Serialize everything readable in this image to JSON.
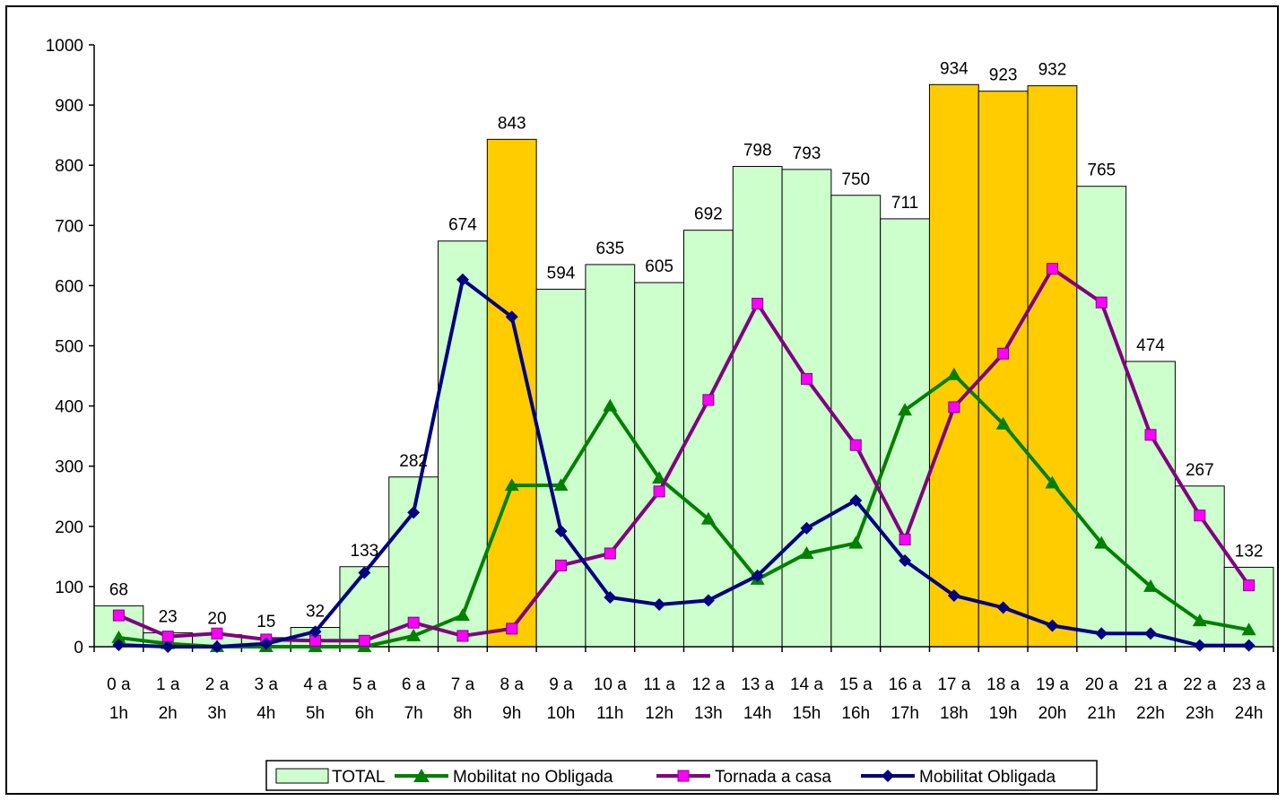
{
  "chart_data": {
    "type": "bar",
    "categories": [
      [
        "0 a",
        "1h"
      ],
      [
        "1 a",
        "2h"
      ],
      [
        "2 a",
        "3h"
      ],
      [
        "3 a",
        "4h"
      ],
      [
        "4 a",
        "5h"
      ],
      [
        "5 a",
        "6h"
      ],
      [
        "6 a",
        "7h"
      ],
      [
        "7 a",
        "8h"
      ],
      [
        "8 a",
        "9h"
      ],
      [
        "9 a",
        "10h"
      ],
      [
        "10 a",
        "11h"
      ],
      [
        "11 a",
        "12h"
      ],
      [
        "12 a",
        "13h"
      ],
      [
        "13 a",
        "14h"
      ],
      [
        "14 a",
        "15h"
      ],
      [
        "15 a",
        "16h"
      ],
      [
        "16 a",
        "17h"
      ],
      [
        "17 a",
        "18h"
      ],
      [
        "18 a",
        "19h"
      ],
      [
        "19 a",
        "20h"
      ],
      [
        "20 a",
        "21h"
      ],
      [
        "21 a",
        "22h"
      ],
      [
        "22 a",
        "23h"
      ],
      [
        "23 a",
        "24h"
      ]
    ],
    "ylim": [
      0,
      1000
    ],
    "yticks": [
      0,
      100,
      200,
      300,
      400,
      500,
      600,
      700,
      800,
      900,
      1000
    ],
    "grid": false,
    "legend_position": "bottom",
    "bar_series": {
      "name": "TOTAL",
      "values": [
        68,
        23,
        20,
        15,
        32,
        133,
        282,
        674,
        843,
        594,
        635,
        605,
        692,
        798,
        793,
        750,
        711,
        934,
        923,
        932,
        765,
        474,
        267,
        132
      ],
      "highlighted_indices": [
        8,
        17,
        18,
        19
      ],
      "color": "#ccffcc",
      "highlight_color": "#ffcc00"
    },
    "line_series": [
      {
        "name": "Mobilitat no Obligada",
        "marker": "triangle",
        "color": "#008000",
        "values": [
          15,
          5,
          0,
          0,
          0,
          0,
          18,
          52,
          268,
          268,
          400,
          280,
          212,
          112,
          155,
          172,
          393,
          452,
          370,
          272,
          172,
          100,
          43,
          28
        ]
      },
      {
        "name": "Tornada a casa",
        "marker": "square",
        "color": "#800080",
        "marker_color": "#ff00ff",
        "values": [
          52,
          17,
          22,
          12,
          10,
          10,
          40,
          18,
          30,
          135,
          155,
          258,
          410,
          570,
          445,
          335,
          178,
          398,
          487,
          628,
          572,
          352,
          218,
          102
        ]
      },
      {
        "name": "Mobilitat Obligada",
        "marker": "diamond",
        "color": "#000080",
        "values": [
          3,
          0,
          0,
          5,
          25,
          123,
          223,
          610,
          548,
          192,
          82,
          70,
          77,
          118,
          197,
          243,
          143,
          85,
          65,
          35,
          22,
          22,
          2,
          2
        ]
      }
    ]
  },
  "legend": {
    "items": [
      {
        "label": "TOTAL"
      },
      {
        "label": "Mobilitat no Obligada"
      },
      {
        "label": "Tornada a casa"
      },
      {
        "label": "Mobilitat Obligada"
      }
    ]
  }
}
